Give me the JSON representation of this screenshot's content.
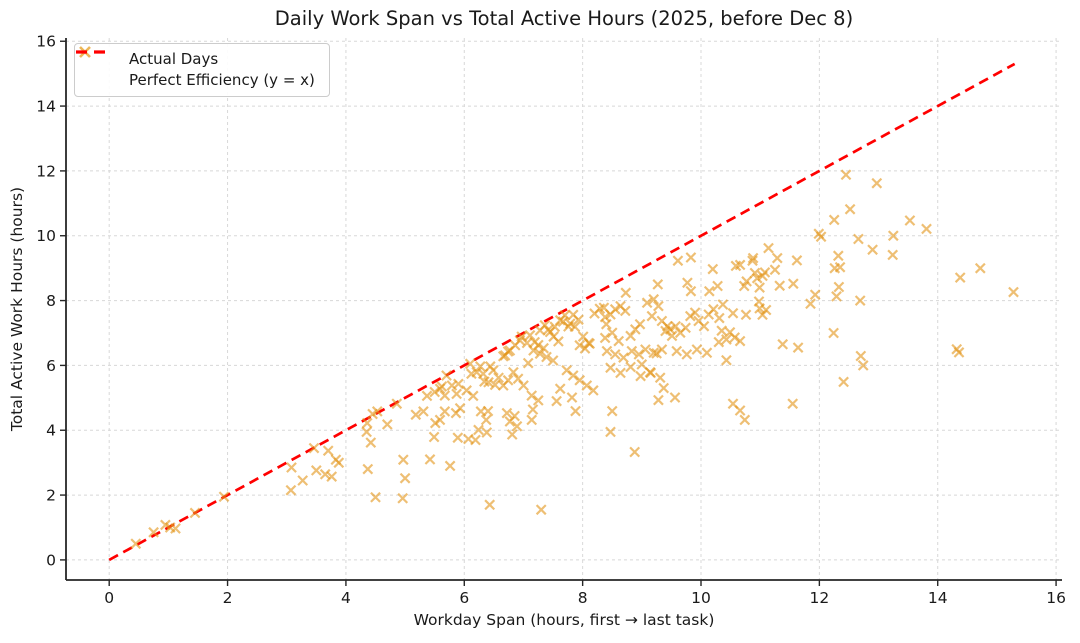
{
  "chart_data": {
    "type": "scatter",
    "title": "Daily Work Span vs Total Active Hours (2025, before Dec 8)",
    "xlabel": "Workday Span (hours, first → last task)",
    "ylabel": "Total Active Work Hours (hours)",
    "xlim": [
      -0.73,
      16.1
    ],
    "ylim": [
      -0.62,
      16.1
    ],
    "xticks": [
      0,
      2,
      4,
      6,
      8,
      10,
      12,
      14,
      16
    ],
    "yticks": [
      0,
      2,
      4,
      6,
      8,
      10,
      12,
      14,
      16
    ],
    "grid": true,
    "legend_position": "upper-left",
    "colors": {
      "marker": "#e29417",
      "line": "#ff0000",
      "grid": "#d8d8d8",
      "spine": "#262626",
      "text": "#1a1a1a"
    },
    "legend": {
      "entries": [
        {
          "label": "Actual Days",
          "type": "marker-x",
          "color": "#e29417"
        },
        {
          "label": "Perfect Efficiency (y = x)",
          "type": "dashed-line",
          "color": "#ff0000"
        }
      ]
    },
    "series": [
      {
        "name": "Actual Days",
        "type": "scatter",
        "marker": "x",
        "color": "#e29417",
        "opacity": 0.6,
        "points": [
          [
            0.45,
            0.5
          ],
          [
            0.75,
            0.85
          ],
          [
            0.95,
            1.08
          ],
          [
            1.03,
            1.0
          ],
          [
            1.12,
            0.97
          ],
          [
            1.45,
            1.45
          ],
          [
            1.94,
            1.95
          ],
          [
            3.07,
            2.15
          ],
          [
            3.08,
            2.85
          ],
          [
            3.27,
            2.45
          ],
          [
            3.46,
            3.45
          ],
          [
            3.5,
            2.76
          ],
          [
            3.65,
            2.64
          ],
          [
            3.7,
            3.37
          ],
          [
            3.76,
            2.57
          ],
          [
            3.83,
            3.09
          ],
          [
            3.88,
            3.0
          ],
          [
            4.35,
            3.95
          ],
          [
            4.36,
            4.22
          ],
          [
            4.37,
            2.8
          ],
          [
            4.42,
            3.62
          ],
          [
            4.45,
            4.5
          ],
          [
            4.5,
            1.93
          ],
          [
            4.53,
            4.58
          ],
          [
            4.7,
            4.18
          ],
          [
            4.86,
            4.82
          ],
          [
            4.96,
            1.9
          ],
          [
            4.97,
            3.09
          ],
          [
            5.0,
            2.52
          ],
          [
            5.18,
            4.48
          ],
          [
            5.31,
            4.58
          ],
          [
            5.37,
            5.06
          ],
          [
            5.42,
            3.1
          ],
          [
            5.49,
            3.79
          ],
          [
            5.5,
            5.18
          ],
          [
            5.51,
            4.22
          ],
          [
            5.59,
            4.32
          ],
          [
            5.59,
            5.28
          ],
          [
            5.62,
            5.35
          ],
          [
            5.67,
            4.58
          ],
          [
            5.67,
            5.07
          ],
          [
            5.7,
            5.69
          ],
          [
            5.76,
            2.9
          ],
          [
            5.79,
            5.38
          ],
          [
            5.86,
            4.53
          ],
          [
            5.87,
            5.12
          ],
          [
            5.89,
            3.77
          ],
          [
            5.9,
            5.43
          ],
          [
            5.93,
            4.68
          ],
          [
            6.04,
            5.23
          ],
          [
            6.07,
            3.73
          ],
          [
            6.1,
            6.05
          ],
          [
            6.12,
            5.74
          ],
          [
            6.15,
            5.06
          ],
          [
            6.19,
            3.7
          ],
          [
            6.21,
            5.79
          ],
          [
            6.24,
            4.01
          ],
          [
            6.27,
            5.97
          ],
          [
            6.28,
            4.58
          ],
          [
            6.32,
            5.74
          ],
          [
            6.34,
            5.5
          ],
          [
            6.37,
            4.32
          ],
          [
            6.38,
            3.93
          ],
          [
            6.4,
            4.59
          ],
          [
            6.41,
            5.48
          ],
          [
            6.43,
            1.7
          ],
          [
            6.44,
            5.97
          ],
          [
            6.49,
            5.85
          ],
          [
            6.52,
            5.4
          ],
          [
            6.58,
            5.62
          ],
          [
            6.66,
            5.38
          ],
          [
            6.66,
            6.28
          ],
          [
            6.69,
            6.31
          ],
          [
            6.72,
            4.53
          ],
          [
            6.74,
            5.54
          ],
          [
            6.74,
            6.43
          ],
          [
            6.77,
            4.27
          ],
          [
            6.77,
            6.46
          ],
          [
            6.81,
            3.87
          ],
          [
            6.83,
            5.79
          ],
          [
            6.85,
            4.44
          ],
          [
            6.86,
            6.62
          ],
          [
            6.89,
            4.12
          ],
          [
            6.91,
            5.59
          ],
          [
            6.94,
            6.77
          ],
          [
            6.97,
            6.89
          ],
          [
            7.0,
            5.38
          ],
          [
            7.06,
            6.69
          ],
          [
            7.08,
            6.07
          ],
          [
            7.11,
            6.93
          ],
          [
            7.14,
            4.32
          ],
          [
            7.14,
            5.07
          ],
          [
            7.16,
            4.64
          ],
          [
            7.17,
            6.46
          ],
          [
            7.19,
            6.72
          ],
          [
            7.25,
            4.92
          ],
          [
            7.25,
            6.63
          ],
          [
            7.28,
            6.36
          ],
          [
            7.28,
            7.08
          ],
          [
            7.3,
            1.55
          ],
          [
            7.34,
            6.53
          ],
          [
            7.36,
            7.24
          ],
          [
            7.39,
            6.26
          ],
          [
            7.42,
            7.1
          ],
          [
            7.45,
            7.03
          ],
          [
            7.5,
            6.15
          ],
          [
            7.51,
            6.89
          ],
          [
            7.53,
            7.19
          ],
          [
            7.56,
            4.9
          ],
          [
            7.59,
            6.74
          ],
          [
            7.62,
            5.28
          ],
          [
            7.62,
            7.39
          ],
          [
            7.67,
            7.35
          ],
          [
            7.7,
            7.55
          ],
          [
            7.73,
            5.85
          ],
          [
            7.76,
            7.2
          ],
          [
            7.79,
            7.29
          ],
          [
            7.82,
            5.01
          ],
          [
            7.84,
            5.69
          ],
          [
            7.84,
            7.56
          ],
          [
            7.87,
            7.19
          ],
          [
            7.88,
            4.59
          ],
          [
            7.93,
            7.41
          ],
          [
            7.95,
            5.54
          ],
          [
            7.95,
            6.62
          ],
          [
            8.01,
            6.89
          ],
          [
            8.04,
            6.52
          ],
          [
            8.07,
            5.38
          ],
          [
            8.1,
            6.69
          ],
          [
            8.12,
            6.67
          ],
          [
            8.18,
            5.23
          ],
          [
            8.2,
            7.6
          ],
          [
            8.29,
            7.75
          ],
          [
            8.36,
            7.78
          ],
          [
            8.38,
            6.85
          ],
          [
            8.38,
            7.49
          ],
          [
            8.4,
            7.27
          ],
          [
            8.41,
            6.44
          ],
          [
            8.47,
            3.95
          ],
          [
            8.47,
            5.93
          ],
          [
            8.47,
            7.57
          ],
          [
            8.5,
            4.59
          ],
          [
            8.5,
            7.01
          ],
          [
            8.55,
            6.34
          ],
          [
            8.55,
            7.73
          ],
          [
            8.61,
            6.75
          ],
          [
            8.64,
            5.77
          ],
          [
            8.64,
            7.83
          ],
          [
            8.69,
            6.24
          ],
          [
            8.72,
            7.68
          ],
          [
            8.81,
            5.95
          ],
          [
            8.81,
            6.91
          ],
          [
            8.83,
            6.44
          ],
          [
            8.88,
            3.33
          ],
          [
            8.89,
            7.11
          ],
          [
            8.95,
            6.34
          ],
          [
            8.97,
            7.27
          ],
          [
            8.98,
            5.67
          ],
          [
            9.0,
            6.03
          ],
          [
            9.06,
            6.49
          ],
          [
            9.09,
            7.93
          ],
          [
            9.14,
            5.79
          ],
          [
            9.15,
            5.77
          ],
          [
            9.17,
            7.52
          ],
          [
            9.2,
            6.39
          ],
          [
            9.2,
            8.04
          ],
          [
            9.25,
            6.37
          ],
          [
            9.28,
            4.93
          ],
          [
            9.28,
            7.83
          ],
          [
            9.31,
            5.62
          ],
          [
            9.34,
            6.49
          ],
          [
            9.34,
            7.37
          ],
          [
            9.37,
            5.3
          ],
          [
            9.4,
            7.06
          ],
          [
            9.43,
            7.21
          ],
          [
            9.48,
            7.11
          ],
          [
            9.51,
            6.91
          ],
          [
            9.56,
            5.01
          ],
          [
            9.57,
            7.21
          ],
          [
            9.59,
            6.44
          ],
          [
            9.65,
            7.01
          ],
          [
            9.74,
            7.16
          ],
          [
            9.76,
            6.34
          ],
          [
            9.82,
            7.52
          ],
          [
            9.9,
            7.63
          ],
          [
            9.93,
            6.49
          ],
          [
            9.96,
            7.37
          ],
          [
            10.05,
            7.21
          ],
          [
            10.1,
            6.39
          ],
          [
            10.13,
            7.57
          ],
          [
            10.21,
            7.73
          ],
          [
            10.3,
            6.72
          ],
          [
            8.73,
            8.24
          ],
          [
            9.27,
            8.5
          ],
          [
            9.61,
            9.23
          ],
          [
            9.77,
            8.55
          ],
          [
            9.83,
            8.29
          ],
          [
            9.83,
            9.33
          ],
          [
            10.14,
            8.29
          ],
          [
            10.2,
            8.97
          ],
          [
            10.28,
            8.45
          ],
          [
            10.59,
            9.07
          ],
          [
            10.73,
            8.45
          ],
          [
            10.87,
            9.23
          ],
          [
            10.99,
            8.4
          ],
          [
            11.04,
            8.76
          ],
          [
            10.31,
            7.46
          ],
          [
            10.35,
            7.07
          ],
          [
            10.37,
            7.88
          ],
          [
            10.43,
            6.16
          ],
          [
            10.43,
            6.8
          ],
          [
            10.49,
            7.02
          ],
          [
            10.54,
            4.82
          ],
          [
            10.54,
            7.61
          ],
          [
            10.57,
            6.86
          ],
          [
            10.66,
            4.61
          ],
          [
            10.66,
            6.75
          ],
          [
            10.74,
            4.32
          ],
          [
            10.76,
            7.56
          ],
          [
            10.98,
            7.97
          ],
          [
            10.99,
            7.76
          ],
          [
            11.04,
            7.56
          ],
          [
            11.1,
            7.71
          ],
          [
            11.38,
            6.65
          ],
          [
            11.55,
            4.82
          ],
          [
            11.64,
            6.55
          ],
          [
            12.24,
            7.0
          ],
          [
            12.41,
            5.49
          ],
          [
            12.7,
            6.29
          ],
          [
            12.74,
            6.0
          ],
          [
            10.66,
            9.1
          ],
          [
            10.77,
            8.59
          ],
          [
            10.88,
            9.31
          ],
          [
            10.91,
            8.85
          ],
          [
            10.95,
            8.69
          ],
          [
            11.08,
            8.87
          ],
          [
            11.14,
            9.62
          ],
          [
            11.25,
            8.95
          ],
          [
            11.29,
            9.31
          ],
          [
            11.33,
            8.46
          ],
          [
            11.56,
            8.52
          ],
          [
            11.62,
            9.24
          ],
          [
            11.85,
            7.9
          ],
          [
            11.93,
            8.18
          ],
          [
            11.99,
            10.06
          ],
          [
            12.03,
            9.97
          ],
          [
            12.25,
            10.49
          ],
          [
            12.26,
            9.0
          ],
          [
            12.29,
            8.13
          ],
          [
            12.32,
            9.38
          ],
          [
            12.33,
            8.42
          ],
          [
            12.35,
            9.03
          ],
          [
            12.45,
            11.88
          ],
          [
            12.52,
            10.82
          ],
          [
            12.66,
            9.9
          ],
          [
            12.69,
            8.0
          ],
          [
            12.9,
            9.57
          ],
          [
            12.97,
            11.62
          ],
          [
            13.24,
            9.41
          ],
          [
            13.25,
            10.0
          ],
          [
            13.53,
            10.47
          ],
          [
            13.81,
            10.21
          ],
          [
            14.32,
            6.5
          ],
          [
            14.36,
            6.4
          ],
          [
            14.38,
            8.71
          ],
          [
            14.72,
            9.0
          ],
          [
            15.28,
            8.26
          ]
        ]
      },
      {
        "name": "Perfect Efficiency (y = x)",
        "type": "line",
        "style": "dashed",
        "color": "#ff0000",
        "points": [
          [
            0,
            0
          ],
          [
            15.3,
            15.3
          ]
        ]
      }
    ]
  }
}
